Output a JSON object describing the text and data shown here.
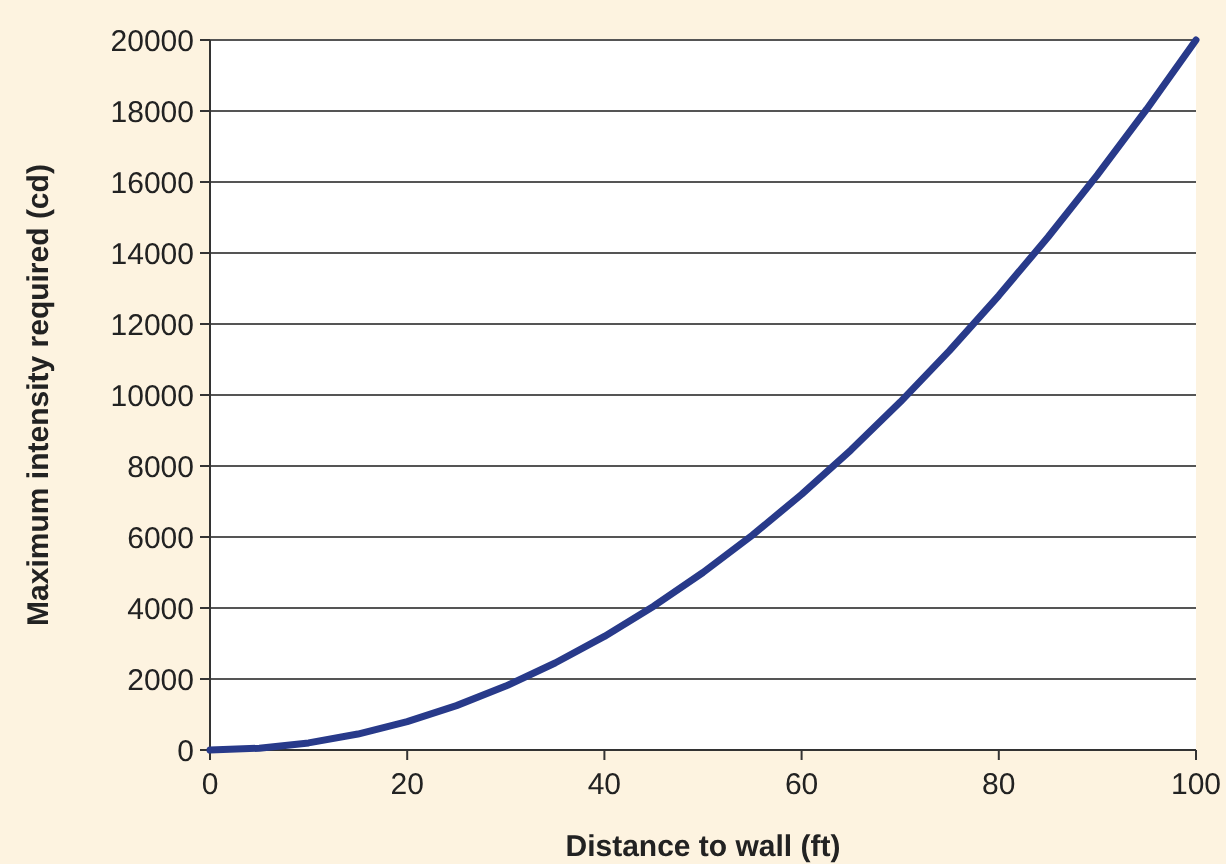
{
  "chart_data": {
    "type": "line",
    "xlabel": "Distance to wall (ft)",
    "ylabel": "Maximum intensity required (cd)",
    "x": [
      0,
      5,
      10,
      15,
      20,
      25,
      30,
      35,
      40,
      45,
      50,
      55,
      60,
      65,
      70,
      75,
      80,
      85,
      90,
      95,
      100
    ],
    "series": [
      {
        "color": "#283a8a",
        "values": [
          0,
          50,
          200,
          450,
          800,
          1250,
          1800,
          2450,
          3200,
          4050,
          5000,
          6050,
          7200,
          8450,
          9800,
          11250,
          12800,
          14450,
          16200,
          18050,
          20000
        ]
      }
    ],
    "xlim": [
      0,
      100
    ],
    "ylim": [
      0,
      20000
    ],
    "xticks": [
      0,
      20,
      40,
      60,
      80,
      100
    ],
    "yticks": [
      0,
      2000,
      4000,
      6000,
      8000,
      10000,
      12000,
      14000,
      16000,
      18000,
      20000
    ],
    "grid": "y",
    "line_style": "solid"
  }
}
